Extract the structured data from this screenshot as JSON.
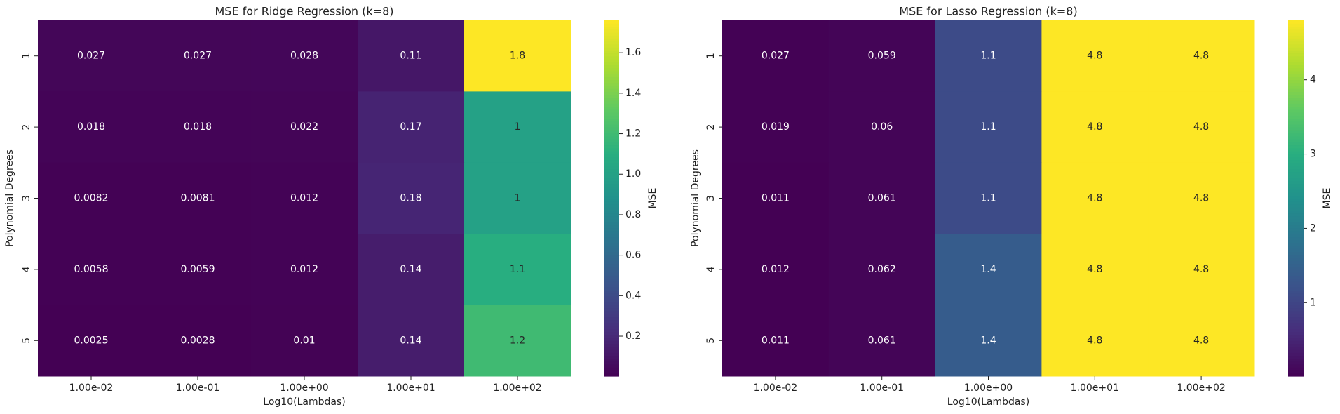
{
  "chart_data": [
    {
      "type": "heatmap",
      "title": "MSE for Ridge Regression (k=8)",
      "xlabel": "Log10(Lambdas)",
      "ylabel": "Polynomial Degrees",
      "colorbar_label": "MSE",
      "colormap": "viridis",
      "x": [
        "1.00e-02",
        "1.00e-01",
        "1.00e+00",
        "1.00e+01",
        "1.00e+02"
      ],
      "y": [
        "1",
        "2",
        "3",
        "4",
        "5"
      ],
      "values": [
        [
          0.027,
          0.027,
          0.028,
          0.11,
          1.8
        ],
        [
          0.018,
          0.018,
          0.022,
          0.17,
          1
        ],
        [
          0.0082,
          0.0081,
          0.012,
          0.18,
          1
        ],
        [
          0.0058,
          0.0059,
          0.012,
          0.14,
          1.1
        ],
        [
          0.0025,
          0.0028,
          0.01,
          0.14,
          1.2
        ]
      ],
      "clim": [
        0.0025,
        1.76
      ],
      "cticks": [
        0.2,
        0.4,
        0.6,
        0.8,
        {
          "value": 1,
          "label": "1.0"
        },
        1.2,
        1.4,
        1.6
      ]
    },
    {
      "type": "heatmap",
      "title": "MSE for Lasso Regression (k=8)",
      "xlabel": "Log10(Lambdas)",
      "ylabel": "Polynomial Degrees",
      "colorbar_label": "MSE",
      "colormap": "viridis",
      "x": [
        "1.00e-02",
        "1.00e-01",
        "1.00e+00",
        "1.00e+01",
        "1.00e+02"
      ],
      "y": [
        "1",
        "2",
        "3",
        "4",
        "5"
      ],
      "values": [
        [
          0.027,
          0.059,
          1.1,
          4.8,
          4.8
        ],
        [
          0.019,
          0.06,
          1.1,
          4.8,
          4.8
        ],
        [
          0.011,
          0.061,
          1.1,
          4.8,
          4.8
        ],
        [
          0.012,
          0.062,
          1.4,
          4.8,
          4.8
        ],
        [
          0.011,
          0.061,
          1.4,
          4.8,
          4.8
        ]
      ],
      "clim": [
        0.011,
        4.8
      ],
      "cticks": [
        1,
        2,
        3,
        4
      ]
    }
  ]
}
